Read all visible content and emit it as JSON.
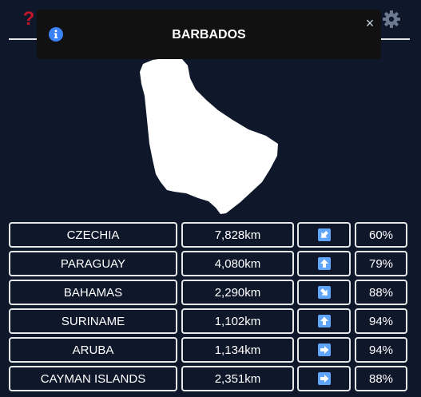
{
  "toast": {
    "title": "BARBADOS"
  },
  "icons": {
    "help": "?",
    "close": "×",
    "info": "info-icon",
    "settings": "gear-icon"
  },
  "colors": {
    "background": "#0f172a",
    "help": "#c0152b",
    "info": "#3b82f6",
    "arrow_tile": "#60a5fa"
  },
  "guesses": [
    {
      "country": "CZECHIA",
      "distance": "7,828km",
      "direction": "south-west",
      "proximity": "60%"
    },
    {
      "country": "PARAGUAY",
      "distance": "4,080km",
      "direction": "north",
      "proximity": "79%"
    },
    {
      "country": "BAHAMAS",
      "distance": "2,290km",
      "direction": "south-east",
      "proximity": "88%"
    },
    {
      "country": "SURINAME",
      "distance": "1,102km",
      "direction": "north",
      "proximity": "94%"
    },
    {
      "country": "ARUBA",
      "distance": "1,134km",
      "direction": "east",
      "proximity": "94%"
    },
    {
      "country": "CAYMAN ISLANDS",
      "distance": "2,351km",
      "direction": "east",
      "proximity": "88%"
    }
  ]
}
